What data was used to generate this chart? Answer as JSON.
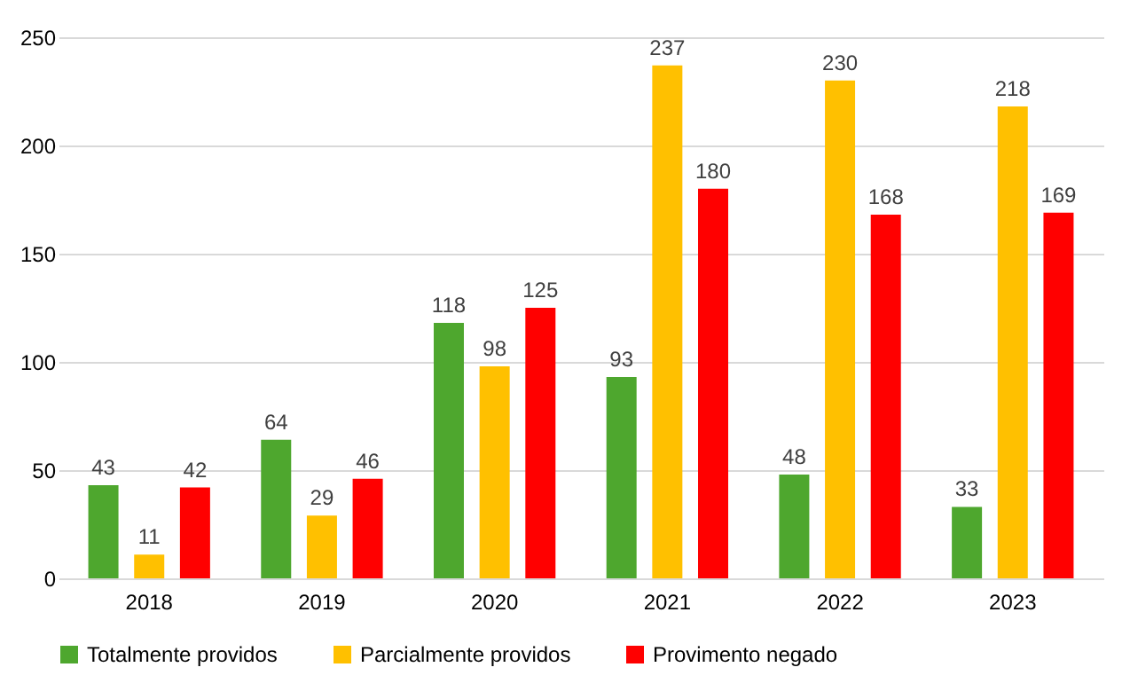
{
  "chart_data": {
    "type": "bar",
    "categories": [
      "2018",
      "2019",
      "2020",
      "2021",
      "2022",
      "2023"
    ],
    "series": [
      {
        "name": "Totalmente providos",
        "color": "#4ea72e",
        "values": [
          43,
          64,
          118,
          93,
          48,
          33
        ]
      },
      {
        "name": "Parcialmente providos",
        "color": "#ffc000",
        "values": [
          11,
          29,
          98,
          237,
          230,
          218
        ]
      },
      {
        "name": "Provimento negado",
        "color": "#ff0000",
        "values": [
          42,
          46,
          125,
          180,
          168,
          169
        ]
      }
    ],
    "ylim": [
      0,
      250
    ],
    "yticks": [
      0,
      50,
      100,
      150,
      200,
      250
    ],
    "grid": "y",
    "legend": "bottom",
    "data_labels": true
  }
}
